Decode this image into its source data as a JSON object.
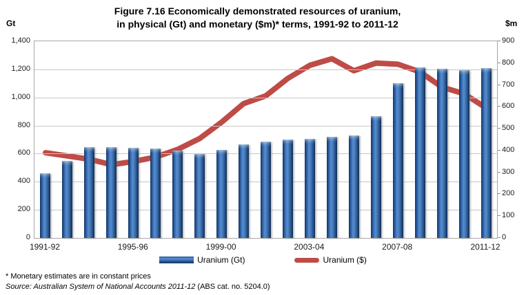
{
  "title": {
    "line1": "Figure 7.16 Economically demonstrated resources of uranium,",
    "line2": "in physical (Gt) and monetary ($m)* terms, 1991-92 to 2011-12"
  },
  "legend": {
    "bar_label": "Uranium (Gt)",
    "line_label": "Uranium ($)"
  },
  "footnotes": {
    "note": "* Monetary estimates are in constant prices",
    "source_italic": "Source: Australian System of National Accounts 2011-12",
    "source_plain": " (ABS cat. no. 5204.0)"
  },
  "colors": {
    "bar_blue_dark": "#16375f",
    "bar_blue_mid": "#3c70b0",
    "bar_blue_light": "#568cce",
    "line_red": "#bf4b47",
    "gridline_gray": "#c6c6c6",
    "plot_border_gray": "#a7a7a7"
  },
  "chart_data": {
    "type": "bar",
    "subtype": "bar+line combo, dual axis",
    "title": "Figure 7.16 Economically demonstrated resources of uranium, in physical (Gt) and monetary ($m)* terms, 1991-92 to 2011-12",
    "categories": [
      "1991-92",
      "1992-93",
      "1993-94",
      "1994-95",
      "1995-96",
      "1996-97",
      "1997-98",
      "1998-99",
      "1999-00",
      "2000-01",
      "2001-02",
      "2002-03",
      "2003-04",
      "2004-05",
      "2005-06",
      "2006-07",
      "2007-08",
      "2008-09",
      "2009-10",
      "2010-11",
      "2011-12"
    ],
    "series": [
      {
        "name": "Uranium (Gt)",
        "type": "bar",
        "axis": "left",
        "color": "#3c70b0",
        "values": [
          460,
          550,
          645,
          645,
          640,
          635,
          620,
          595,
          625,
          665,
          685,
          700,
          705,
          720,
          730,
          865,
          1100,
          1215,
          1205,
          1195,
          1210
        ]
      },
      {
        "name": "Uranium ($)",
        "type": "line",
        "axis": "right",
        "color": "#bf4b47",
        "values": [
          390,
          375,
          360,
          335,
          350,
          370,
          405,
          455,
          530,
          615,
          650,
          730,
          790,
          820,
          765,
          800,
          795,
          760,
          690,
          660,
          595
        ]
      }
    ],
    "left_axis": {
      "label": "Gt",
      "min": 0,
      "max": 1400,
      "step": 200,
      "tick_labels": [
        "0",
        "200",
        "400",
        "600",
        "800",
        "1,000",
        "1,200",
        "1,400"
      ]
    },
    "right_axis": {
      "label": "$m",
      "min": 0,
      "max": 900,
      "step": 100,
      "tick_labels": [
        "0",
        "100",
        "200",
        "300",
        "400",
        "500",
        "600",
        "700",
        "800",
        "900"
      ]
    },
    "x_axis": {
      "shown_labels": [
        "1991-92",
        "1995-96",
        "1999-00",
        "2003-04",
        "2007-08",
        "2011-12"
      ],
      "label_every": 4
    },
    "grid": "horizontal gridlines at every 200 Gt",
    "legend_position": "bottom"
  }
}
